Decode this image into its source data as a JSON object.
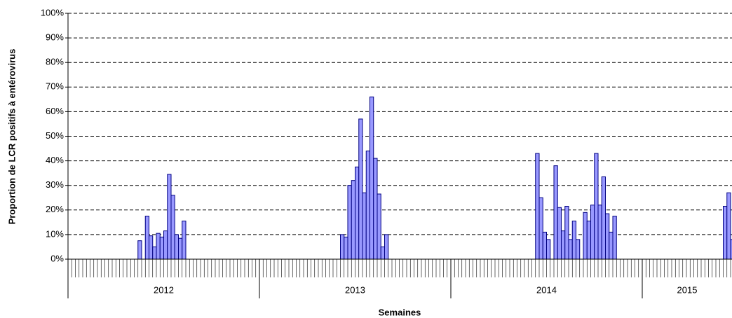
{
  "chart_data": {
    "type": "bar",
    "y_label": "Proportion de LCR positifs à entérovirus",
    "x_label": "Semaines",
    "groups": [
      {
        "label": "2012",
        "size": 52
      },
      {
        "label": "2013",
        "size": 52
      },
      {
        "label": "2014",
        "size": 52
      },
      {
        "label": "2015",
        "size": 25
      }
    ],
    "color": "#9999ff",
    "edge_color": "#000080",
    "grid": true,
    "ylim": [
      0,
      100
    ],
    "yticks": [
      {
        "value": 0,
        "label": "0%"
      },
      {
        "value": 10,
        "label": "10%"
      },
      {
        "value": 20,
        "label": "20%"
      },
      {
        "value": 30,
        "label": "30%"
      },
      {
        "value": 40,
        "label": "40%"
      },
      {
        "value": 50,
        "label": "50%"
      },
      {
        "value": 60,
        "label": "60%"
      },
      {
        "value": 70,
        "label": "70%"
      },
      {
        "value": 80,
        "label": "80%"
      },
      {
        "value": 90,
        "label": "90%"
      },
      {
        "value": 100,
        "label": "100%"
      }
    ],
    "values": [
      null,
      null,
      null,
      null,
      null,
      null,
      null,
      null,
      null,
      null,
      null,
      null,
      null,
      null,
      null,
      null,
      null,
      null,
      null,
      7.5,
      null,
      17.5,
      9.5,
      5,
      10.5,
      9,
      11.5,
      34.5,
      26,
      10,
      8.5,
      15.5,
      null,
      null,
      null,
      null,
      null,
      null,
      null,
      null,
      null,
      null,
      null,
      null,
      null,
      null,
      null,
      null,
      null,
      null,
      null,
      null,
      null,
      null,
      null,
      null,
      null,
      null,
      null,
      null,
      null,
      null,
      null,
      null,
      null,
      null,
      null,
      null,
      null,
      null,
      null,
      null,
      null,
      null,
      10,
      9,
      30,
      32,
      37.5,
      57,
      27,
      44,
      66,
      41,
      26.5,
      5,
      10,
      null,
      null,
      null,
      null,
      null,
      null,
      null,
      null,
      null,
      null,
      null,
      null,
      null,
      null,
      null,
      null,
      null,
      null,
      null,
      null,
      null,
      null,
      null,
      null,
      null,
      null,
      null,
      null,
      null,
      null,
      null,
      null,
      null,
      null,
      null,
      null,
      null,
      null,
      null,
      null,
      43,
      25,
      11,
      8,
      null,
      38,
      21,
      11.5,
      21.5,
      8,
      15.5,
      8,
      null,
      19,
      15.5,
      22,
      43,
      22,
      33.5,
      18.5,
      11,
      17.5,
      null,
      null,
      null,
      null,
      null,
      null,
      null,
      null,
      null,
      null,
      null,
      null,
      null,
      null,
      null,
      null,
      null,
      null,
      null,
      null,
      null,
      null,
      null,
      null,
      null,
      null,
      null,
      null,
      null,
      21.5,
      27,
      8
    ]
  }
}
